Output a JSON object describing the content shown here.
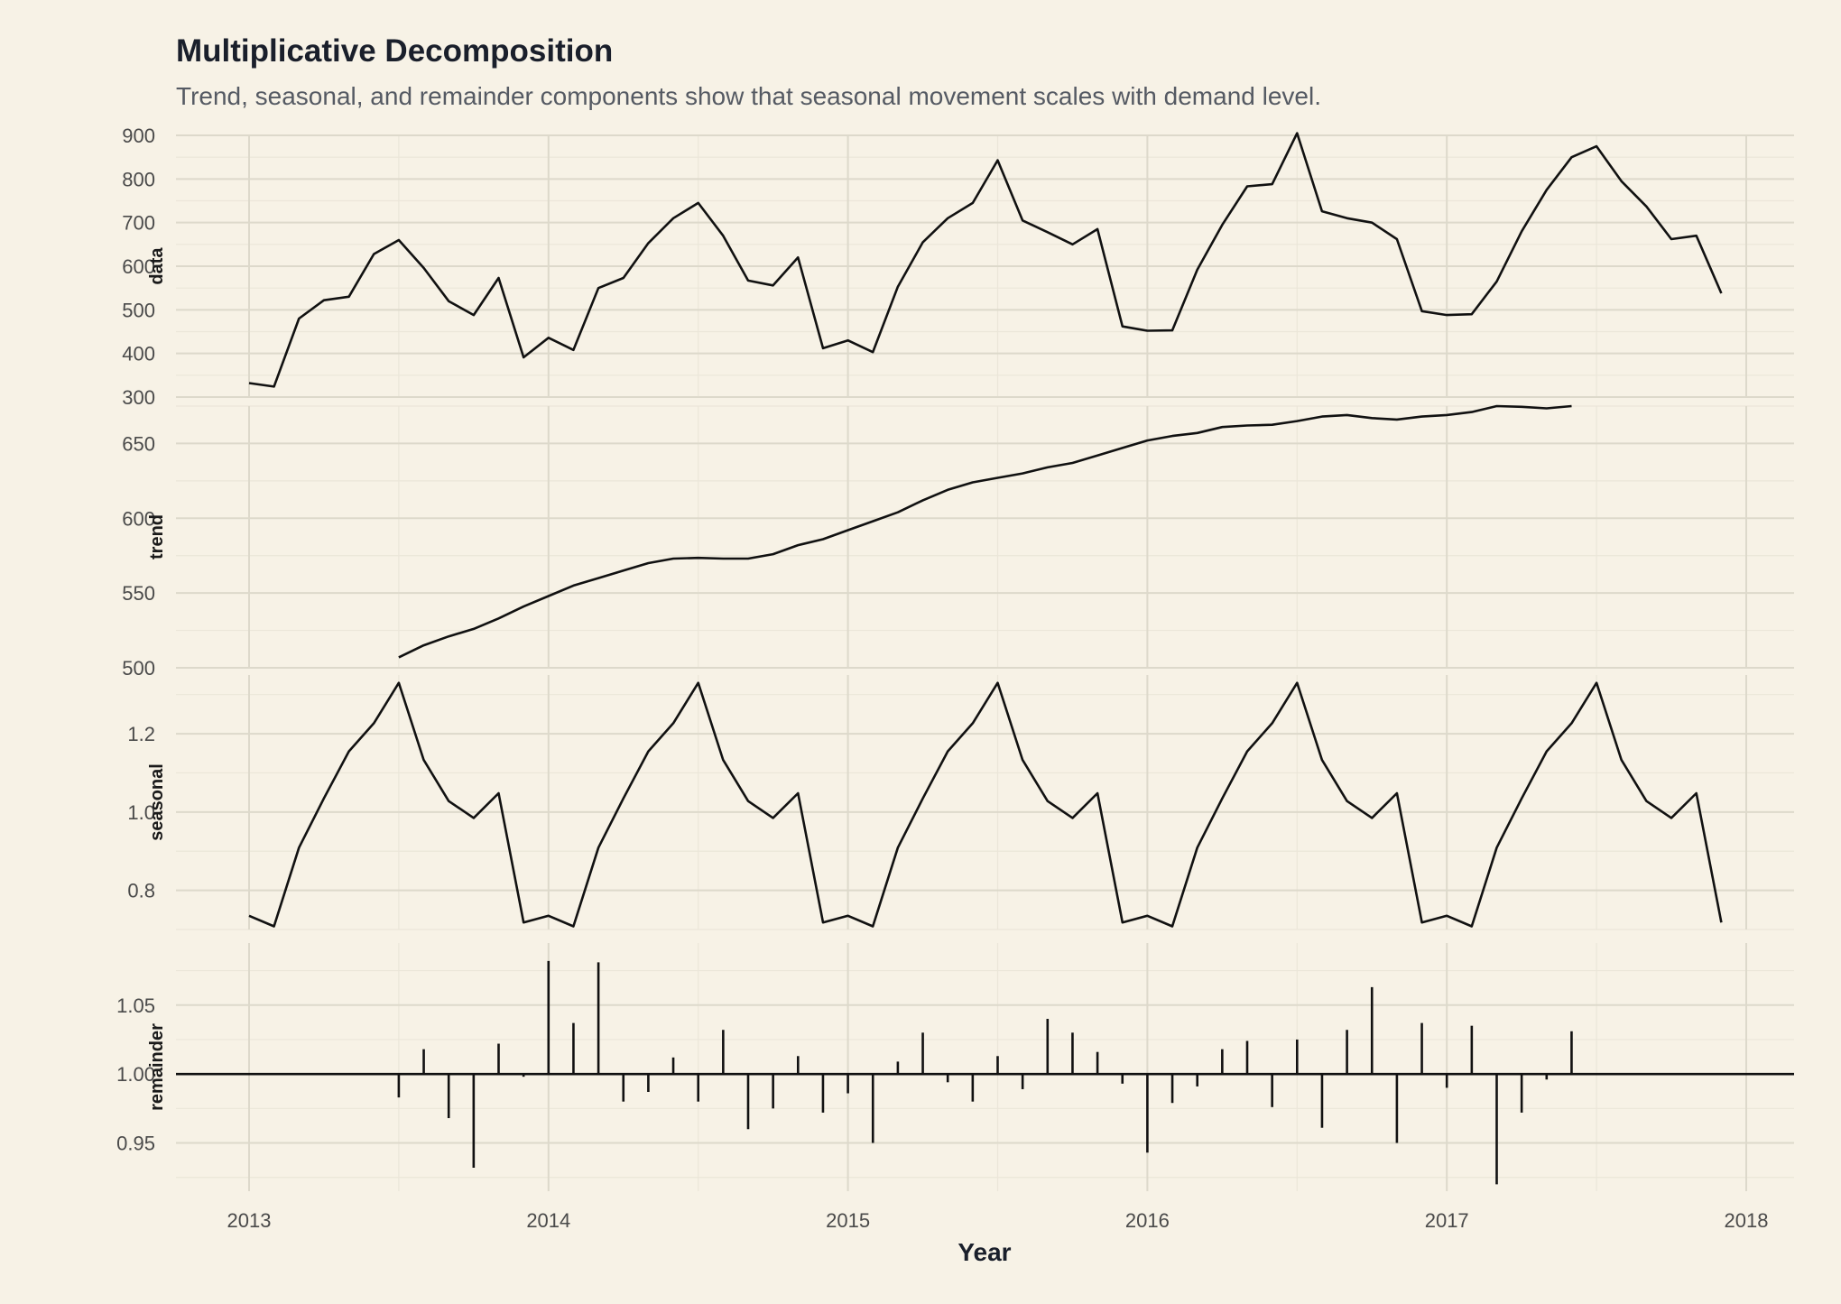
{
  "chart": {
    "title": "Multiplicative Decomposition",
    "subtitle": "Trend, seasonal, and remainder components show that seasonal movement scales with demand level.",
    "xlabel": "Year"
  },
  "chart_data": {
    "type": "line",
    "x_start": "2013-01",
    "x_frequency": "monthly",
    "x_ticks": [
      "2013",
      "2014",
      "2015",
      "2016",
      "2017",
      "2018"
    ],
    "xlim": [
      2012.75,
      2018.17
    ],
    "panels": [
      {
        "name": "data",
        "type": "line",
        "ylim": [
          300,
          900
        ],
        "y_ticks": [
          "300",
          "400",
          "500",
          "600",
          "700",
          "800",
          "900"
        ],
        "values": [
          332,
          324,
          480,
          522,
          530,
          628,
          660,
          596,
          520,
          488,
          573,
          391,
          436,
          408,
          550,
          573,
          653,
          710,
          745,
          670,
          567,
          556,
          620,
          412,
          430,
          403,
          553,
          655,
          710,
          745,
          843,
          705,
          678,
          650,
          685,
          462,
          452,
          453,
          592,
          695,
          783,
          788,
          905,
          726,
          710,
          700,
          662,
          497,
          488,
          490,
          565,
          680,
          775,
          850,
          875,
          795,
          737,
          662,
          670,
          538
        ]
      },
      {
        "name": "trend",
        "type": "line",
        "ylim": [
          500,
          675
        ],
        "y_ticks": [
          "500",
          "550",
          "600",
          "650"
        ],
        "values": [
          null,
          null,
          null,
          null,
          null,
          null,
          507,
          515,
          521,
          526,
          533,
          541,
          548,
          555,
          560,
          565,
          570,
          573,
          573.5,
          573,
          573,
          576,
          582,
          586,
          592,
          598,
          604,
          612,
          619,
          624,
          627,
          630,
          634,
          637,
          642,
          647,
          652,
          655,
          657,
          661,
          662,
          662.5,
          665,
          668,
          669,
          667,
          666,
          668,
          669,
          671,
          675,
          674.5,
          673.5,
          675,
          null,
          null,
          null,
          null,
          null,
          null
        ]
      },
      {
        "name": "seasonal",
        "type": "line",
        "ylim": [
          0.7,
          1.35
        ],
        "y_ticks": [
          "0.8",
          "1.0",
          "1.2"
        ],
        "values": [
          0.735,
          0.708,
          0.909,
          1.035,
          1.155,
          1.227,
          1.33,
          1.133,
          1.028,
          0.985,
          1.048,
          0.718,
          0.735,
          0.708,
          0.909,
          1.035,
          1.155,
          1.227,
          1.33,
          1.133,
          1.028,
          0.985,
          1.048,
          0.718,
          0.735,
          0.708,
          0.909,
          1.035,
          1.155,
          1.227,
          1.33,
          1.133,
          1.028,
          0.985,
          1.048,
          0.718,
          0.735,
          0.708,
          0.909,
          1.035,
          1.155,
          1.227,
          1.33,
          1.133,
          1.028,
          0.985,
          1.048,
          0.718,
          0.735,
          0.708,
          0.909,
          1.035,
          1.155,
          1.227,
          1.33,
          1.133,
          1.028,
          0.985,
          1.048,
          0.718
        ]
      },
      {
        "name": "remainder",
        "type": "spike",
        "baseline": 1.0,
        "ylim": [
          0.915,
          1.095
        ],
        "y_ticks": [
          "0.95",
          "1.00",
          "1.05"
        ],
        "values": [
          null,
          null,
          null,
          null,
          null,
          null,
          0.983,
          1.018,
          0.968,
          0.932,
          1.022,
          0.998,
          1.082,
          1.037,
          1.081,
          0.98,
          0.987,
          1.012,
          0.98,
          1.032,
          0.96,
          0.975,
          1.013,
          0.972,
          0.986,
          0.95,
          1.009,
          1.03,
          0.994,
          0.98,
          1.013,
          0.989,
          1.04,
          1.03,
          1.016,
          0.993,
          0.943,
          0.979,
          0.991,
          1.018,
          1.024,
          0.976,
          1.025,
          0.961,
          1.032,
          1.063,
          0.95,
          1.037,
          0.99,
          1.035,
          0.92,
          0.972,
          0.996,
          1.031,
          null,
          null,
          null,
          null,
          null,
          null
        ]
      }
    ]
  }
}
